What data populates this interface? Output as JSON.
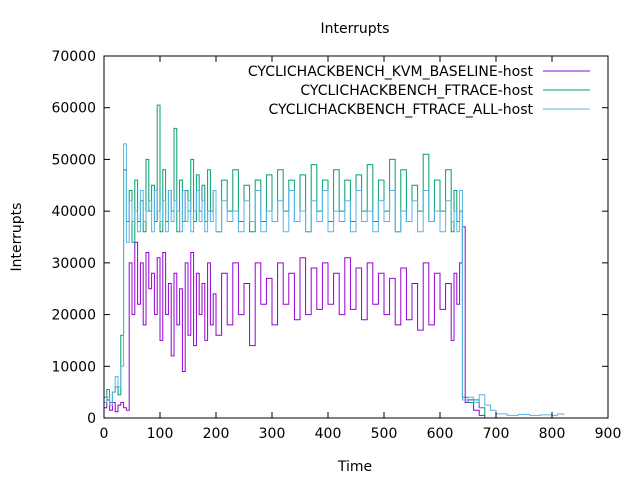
{
  "chart_data": {
    "type": "line",
    "title": "Interrupts",
    "xlabel": "Time",
    "ylabel": "Interrupts",
    "xlim": [
      0,
      900
    ],
    "ylim": [
      0,
      70000
    ],
    "x_ticks": [
      0,
      100,
      200,
      300,
      400,
      500,
      600,
      700,
      800,
      900
    ],
    "y_ticks": [
      0,
      10000,
      20000,
      30000,
      40000,
      50000,
      60000,
      70000
    ],
    "grid": false,
    "legend_position": "top-right",
    "series": [
      {
        "name": "CYCLICHACKBENCH_KVM_BASELINE-host",
        "color": "#9400d3",
        "x": [
          0,
          5,
          10,
          15,
          20,
          25,
          30,
          35,
          40,
          45,
          50,
          55,
          60,
          65,
          70,
          75,
          80,
          85,
          90,
          95,
          100,
          105,
          110,
          115,
          120,
          125,
          130,
          135,
          140,
          145,
          150,
          155,
          160,
          165,
          170,
          175,
          180,
          185,
          190,
          195,
          200,
          210,
          220,
          230,
          240,
          250,
          260,
          270,
          280,
          290,
          300,
          310,
          320,
          330,
          340,
          350,
          360,
          370,
          380,
          390,
          400,
          410,
          420,
          430,
          440,
          450,
          460,
          470,
          480,
          490,
          500,
          510,
          520,
          530,
          540,
          550,
          560,
          570,
          580,
          590,
          600,
          610,
          620,
          625,
          630,
          635,
          640,
          645,
          650,
          660,
          670,
          680
        ],
        "y": [
          2000,
          3500,
          1500,
          3000,
          1200,
          2500,
          3000,
          2000,
          1500,
          30000,
          20000,
          34000,
          22000,
          30000,
          18000,
          32000,
          25000,
          28000,
          20000,
          31000,
          15000,
          32000,
          20000,
          26000,
          12000,
          28000,
          18000,
          25000,
          9000,
          30000,
          16000,
          32000,
          14000,
          28000,
          20000,
          26000,
          15000,
          30000,
          18000,
          24000,
          16000,
          28000,
          18000,
          30000,
          20000,
          26000,
          14000,
          30000,
          22000,
          27000,
          18000,
          30000,
          22000,
          28000,
          19000,
          31000,
          20000,
          29000,
          21000,
          30000,
          22000,
          28000,
          20000,
          31000,
          21000,
          29000,
          19000,
          30000,
          22000,
          28000,
          20000,
          27000,
          18000,
          29000,
          19000,
          26000,
          17000,
          30000,
          18000,
          28000,
          21000,
          26000,
          15000,
          28000,
          22000,
          30000,
          37000,
          3000,
          3500,
          1500,
          500,
          0
        ]
      },
      {
        "name": "CYCLICHACKBENCH_FTRACE-host",
        "color": "#009e73",
        "x": [
          0,
          5,
          10,
          15,
          20,
          25,
          30,
          35,
          40,
          45,
          50,
          55,
          60,
          65,
          70,
          75,
          80,
          85,
          90,
          95,
          100,
          105,
          110,
          115,
          120,
          125,
          130,
          135,
          140,
          145,
          150,
          155,
          160,
          165,
          170,
          175,
          180,
          185,
          190,
          195,
          200,
          210,
          220,
          230,
          240,
          250,
          260,
          270,
          280,
          290,
          300,
          310,
          320,
          330,
          340,
          350,
          360,
          370,
          380,
          390,
          400,
          410,
          420,
          430,
          440,
          450,
          460,
          470,
          480,
          490,
          500,
          510,
          520,
          530,
          540,
          550,
          560,
          570,
          580,
          590,
          600,
          610,
          620,
          625,
          630,
          635,
          640,
          650,
          660,
          670,
          680
        ],
        "y": [
          4000,
          5500,
          3000,
          5000,
          6000,
          4500,
          16000,
          48000,
          38000,
          44000,
          34000,
          46000,
          38000,
          42000,
          36000,
          50000,
          40000,
          45000,
          38000,
          60500,
          36000,
          48000,
          38000,
          44000,
          40000,
          56000,
          36000,
          46000,
          38000,
          44000,
          40000,
          50000,
          38000,
          47000,
          40000,
          45000,
          38000,
          48000,
          40000,
          44000,
          36000,
          46000,
          40000,
          48000,
          38000,
          45000,
          36000,
          46000,
          38000,
          47000,
          38000,
          48000,
          40000,
          46000,
          38000,
          47000,
          36000,
          49000,
          40000,
          46000,
          38000,
          48000,
          40000,
          46000,
          38000,
          47000,
          40000,
          49000,
          38000,
          46000,
          40000,
          50000,
          36000,
          48000,
          38000,
          45000,
          40000,
          51000,
          38000,
          46000,
          40000,
          48000,
          36000,
          44000,
          38000,
          40000,
          4000,
          3000,
          3500,
          2000,
          500
        ]
      },
      {
        "name": "CYCLICHACKBENCH_FTRACE_ALL-host",
        "color": "#56b4e9",
        "x": [
          0,
          5,
          10,
          15,
          20,
          25,
          30,
          35,
          40,
          45,
          50,
          55,
          60,
          65,
          70,
          75,
          80,
          85,
          90,
          95,
          100,
          105,
          110,
          115,
          120,
          125,
          130,
          135,
          140,
          145,
          150,
          155,
          160,
          165,
          170,
          175,
          180,
          185,
          190,
          195,
          200,
          210,
          220,
          230,
          240,
          250,
          260,
          270,
          280,
          290,
          300,
          310,
          320,
          330,
          340,
          350,
          360,
          370,
          380,
          390,
          400,
          410,
          420,
          430,
          440,
          450,
          460,
          470,
          480,
          490,
          500,
          510,
          520,
          530,
          540,
          550,
          560,
          570,
          580,
          590,
          600,
          610,
          620,
          625,
          630,
          635,
          640,
          650,
          660,
          670,
          680,
          690,
          700,
          720,
          740,
          760,
          780,
          800,
          810,
          820
        ],
        "y": [
          3000,
          4000,
          2500,
          5000,
          8000,
          6000,
          10000,
          53000,
          34000,
          42000,
          38000,
          40000,
          36000,
          44000,
          38000,
          40000,
          42000,
          36000,
          44000,
          40000,
          38000,
          42000,
          36000,
          44000,
          38000,
          42000,
          40000,
          36000,
          44000,
          38000,
          42000,
          36000,
          40000,
          44000,
          38000,
          42000,
          36000,
          40000,
          38000,
          44000,
          36000,
          42000,
          38000,
          40000,
          36000,
          42000,
          38000,
          44000,
          36000,
          40000,
          38000,
          42000,
          36000,
          44000,
          38000,
          40000,
          36000,
          42000,
          38000,
          44000,
          36000,
          40000,
          38000,
          42000,
          36000,
          44000,
          38000,
          40000,
          36000,
          42000,
          38000,
          44000,
          36000,
          40000,
          38000,
          42000,
          36000,
          44000,
          38000,
          40000,
          36000,
          42000,
          38000,
          40000,
          36000,
          44000,
          3500,
          4000,
          3000,
          4500,
          2500,
          1500,
          800,
          500,
          700,
          500,
          600,
          500,
          800,
          500
        ]
      }
    ]
  }
}
